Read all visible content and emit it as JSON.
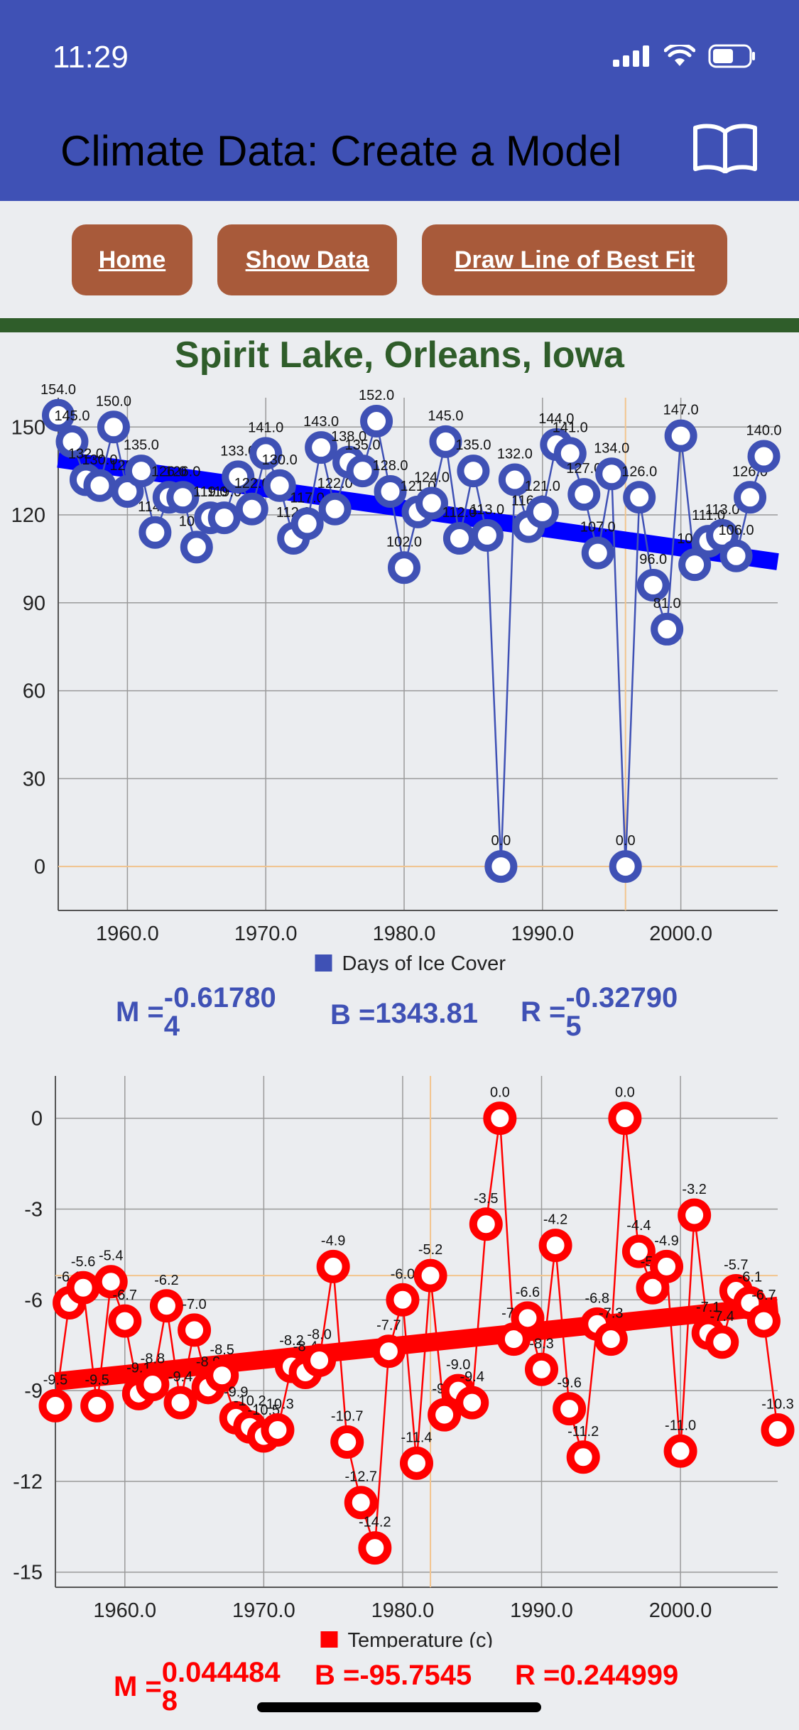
{
  "status_bar": {
    "time": "11:29"
  },
  "header": {
    "title": "Climate Data: Create a Model",
    "book_icon": "book-icon"
  },
  "nav": {
    "home": "Home",
    "show_data": "Show Data",
    "best_fit": "Draw Line of Best Fit"
  },
  "location_title": "Spirit Lake, Orleans, Iowa",
  "colors": {
    "header": "#3f51b5",
    "button": "#a85a3a",
    "accent_green": "#2f5d2a",
    "ice": "#3f51b5",
    "temp": "#ff0000"
  },
  "chart_data": [
    {
      "type": "line",
      "legend": "Days of Ice Cover",
      "legend_position": "bottom",
      "grid": true,
      "xlim": [
        1955,
        2007
      ],
      "ylim": [
        -15,
        160
      ],
      "x_ticks": [
        1960,
        1970,
        1980,
        1990,
        2000
      ],
      "x_tick_labels": [
        "1960.0",
        "1970.0",
        "1980.0",
        "1990.0",
        "2000.0"
      ],
      "y_ticks": [
        0,
        30,
        60,
        90,
        120,
        150
      ],
      "crosshair": {
        "x": 1996,
        "y": 0
      },
      "trend_line": {
        "x": [
          1955,
          2007
        ],
        "y": [
          139,
          104
        ]
      },
      "x": [
        1955,
        1956,
        1957,
        1958,
        1959,
        1960,
        1961,
        1962,
        1963,
        1964,
        1965,
        1966,
        1967,
        1968,
        1969,
        1970,
        1971,
        1972,
        1973,
        1974,
        1975,
        1976,
        1977,
        1978,
        1979,
        1980,
        1981,
        1982,
        1983,
        1984,
        1985,
        1986,
        1987,
        1988,
        1989,
        1990,
        1991,
        1992,
        1993,
        1994,
        1995,
        1996,
        1997,
        1998,
        1999,
        2000,
        2001,
        2002,
        2003,
        2004,
        2005,
        2006
      ],
      "values": [
        154,
        145,
        132,
        130,
        150,
        128,
        135,
        114,
        126,
        126,
        109,
        119,
        119,
        133,
        122,
        141,
        130,
        112,
        117,
        143,
        122,
        138,
        135,
        152,
        128,
        102,
        121,
        124,
        145,
        112,
        135,
        113,
        0,
        132,
        116,
        121,
        144,
        141,
        127,
        107,
        134,
        0,
        126,
        96,
        81,
        147,
        103,
        111,
        113,
        106,
        126,
        140
      ],
      "labels": [
        "154.0",
        "145.0",
        "132.0",
        "130.0",
        "150.0",
        "128.0",
        "135.0",
        "114.0",
        "126.0",
        "126.0",
        "109.0",
        "119.0",
        "119.0",
        "133.0",
        "122.0",
        "141.0",
        "130.0",
        "112.0",
        "117.0",
        "143.0",
        "122.0",
        "138.0",
        "135.0",
        "152.0",
        "128.0",
        "102.0",
        "121.0",
        "124.0",
        "145.0",
        "112.0",
        "135.0",
        "113.0",
        "0.0",
        "132.0",
        "116.0",
        "121.0",
        "144.0",
        "141.0",
        "127.0",
        "107.0",
        "134.0",
        "0.0",
        "126.0",
        "96.0",
        "81.0",
        "147.0",
        "103.0",
        "111.0",
        "113.0",
        "106.0",
        "126.0",
        "140.0"
      ],
      "stats": {
        "m_label": "M =",
        "m": "-0.617804",
        "b_label": "B =",
        "b": "1343.81",
        "r_label": "R =",
        "r": "-0.327905"
      }
    },
    {
      "type": "line",
      "legend": "Temperature (c)",
      "legend_position": "bottom",
      "grid": true,
      "xlim": [
        1955,
        2007
      ],
      "ylim": [
        -15.5,
        1.4
      ],
      "x_ticks": [
        1960,
        1970,
        1980,
        1990,
        2000
      ],
      "x_tick_labels": [
        "1960.0",
        "1970.0",
        "1980.0",
        "1990.0",
        "2000.0"
      ],
      "y_ticks": [
        0,
        -3,
        -6,
        -9,
        -12,
        -15
      ],
      "crosshair": {
        "x": 1982,
        "y": -5.2
      },
      "trend_line": {
        "x": [
          1955,
          2007
        ],
        "y": [
          -8.7,
          -6.2
        ]
      },
      "x": [
        1955,
        1956,
        1957,
        1958,
        1959,
        1960,
        1961,
        1962,
        1963,
        1964,
        1965,
        1966,
        1967,
        1968,
        1969,
        1970,
        1971,
        1972,
        1973,
        1974,
        1975,
        1976,
        1977,
        1978,
        1979,
        1980,
        1981,
        1982,
        1983,
        1984,
        1985,
        1986,
        1987,
        1988,
        1989,
        1990,
        1991,
        1992,
        1993,
        1994,
        1995,
        1996,
        1997,
        1998,
        1999,
        2000,
        2001,
        2002,
        2003,
        2004,
        2005,
        2006,
        2007
      ],
      "values": [
        -9.5,
        -6.1,
        -5.6,
        -9.5,
        -5.4,
        -6.7,
        -9.1,
        -8.8,
        -6.2,
        -9.4,
        -7.0,
        -8.9,
        -8.5,
        -9.9,
        -10.2,
        -10.5,
        -10.3,
        -8.2,
        -8.4,
        -8.0,
        -4.9,
        -10.7,
        -12.7,
        -14.2,
        -7.7,
        -6.0,
        -11.4,
        -5.2,
        -9.8,
        -9.0,
        -9.4,
        -3.5,
        0.0,
        -7.3,
        -6.6,
        -8.3,
        -4.2,
        -9.6,
        -11.2,
        -6.8,
        -7.3,
        0.0,
        -4.4,
        -5.6,
        -4.9,
        -11.0,
        -3.2,
        -7.1,
        -7.4,
        -5.7,
        -6.1,
        -6.7,
        -10.3
      ],
      "labels": [
        "-9.5",
        "-6.1",
        "-5.6",
        "-9.5",
        "-5.4",
        "-6.7",
        "-9.1",
        "-8.8",
        "-6.2",
        "-9.4",
        "-7.0",
        "-8.9",
        "-8.5",
        "-9.9",
        "-10.2",
        "-10.5",
        "-10.3",
        "-8.2",
        "-8.4",
        "-8.0",
        "-4.9",
        "-10.7",
        "-12.7",
        "-14.2",
        "-7.7",
        "-6.0",
        "-11.4",
        "-5.2",
        "-9.8",
        "-9.0",
        "-9.4",
        "-3.5",
        "0.0",
        "-7.3",
        "-6.6",
        "-8.3",
        "-4.2",
        "-9.6",
        "-11.2",
        "-6.8",
        "-7.3",
        "0.0",
        "-4.4",
        "-5.6",
        "-4.9",
        "-11.0",
        "-3.2",
        "-7.1",
        "-7.4",
        "-5.7",
        "-6.1",
        "-6.7",
        "-10.3"
      ],
      "stats": {
        "m_label": "M =",
        "m": "0.0444848",
        "b_label": "B =",
        "b": "-95.7545",
        "r_label": "R =",
        "r": "0.244999"
      }
    }
  ]
}
